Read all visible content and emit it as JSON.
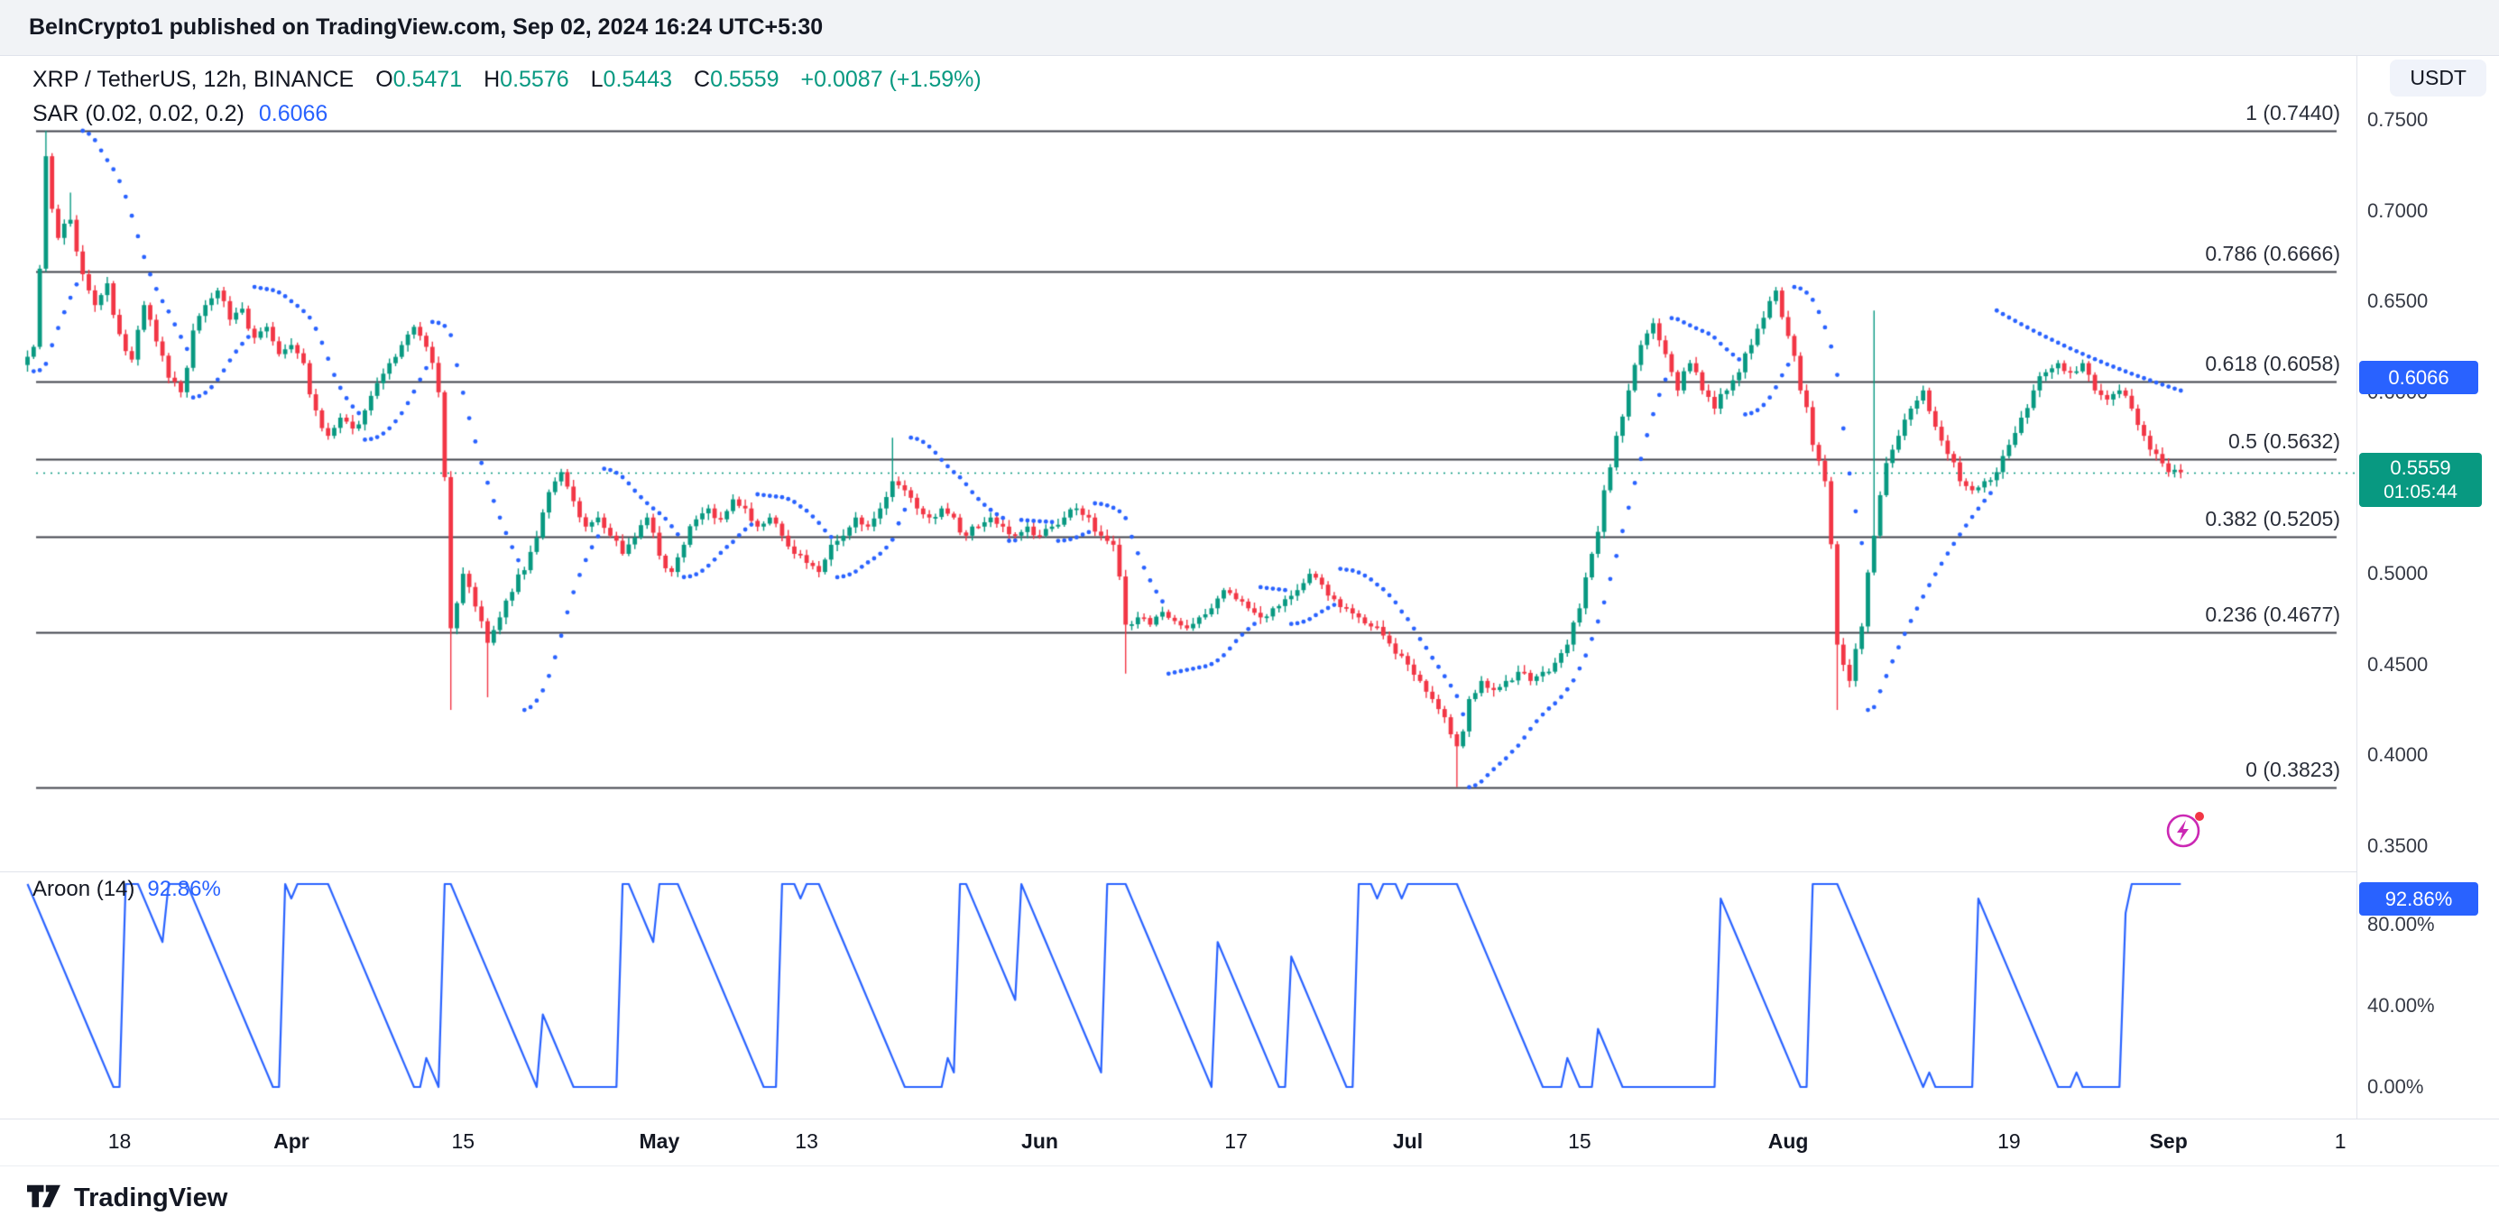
{
  "page": {
    "byline": "BeInCrypto1 published on TradingView.com, Sep 02, 2024 16:24 UTC+5:30",
    "footer_brand": "TradingView"
  },
  "legend": {
    "symbol": "XRP / TetherUS, 12h, BINANCE",
    "o_label": "O",
    "o_value": "0.5471",
    "h_label": "H",
    "h_value": "0.5576",
    "l_label": "L",
    "l_value": "0.5443",
    "c_label": "C",
    "c_value": "0.5559",
    "change": "+0.0087 (+1.59%)"
  },
  "sar_legend": {
    "label": "SAR (0.02, 0.02, 0.2)",
    "value": "0.6066"
  },
  "price_axis": {
    "currency_button": "USDT",
    "ticks": [
      {
        "label": "0.7500",
        "value": 0.75
      },
      {
        "label": "0.7000",
        "value": 0.7
      },
      {
        "label": "0.6500",
        "value": 0.65
      },
      {
        "label": "0.6000",
        "value": 0.6
      },
      {
        "label": "0.5000",
        "value": 0.5
      },
      {
        "label": "0.4500",
        "value": 0.45
      },
      {
        "label": "0.4000",
        "value": 0.4
      },
      {
        "label": "0.3500",
        "value": 0.35
      }
    ],
    "sar_badge": "0.6066",
    "price_badge": {
      "price": "0.5559",
      "countdown": "01:05:44"
    }
  },
  "aroon_pane": {
    "label": "Aroon (14)",
    "value": "92.86%",
    "badge": "92.86%",
    "ticks": [
      {
        "label": "80.00%",
        "value": 80
      },
      {
        "label": "40.00%",
        "value": 40
      },
      {
        "label": "0.00%",
        "value": 0
      }
    ]
  },
  "x_axis": {
    "labels": [
      {
        "label": "18",
        "day": 8,
        "bold": false
      },
      {
        "label": "Apr",
        "day": 22,
        "bold": true
      },
      {
        "label": "15",
        "day": 36,
        "bold": false
      },
      {
        "label": "May",
        "day": 52,
        "bold": true
      },
      {
        "label": "13",
        "day": 64,
        "bold": false
      },
      {
        "label": "Jun",
        "day": 83,
        "bold": true
      },
      {
        "label": "17",
        "day": 99,
        "bold": false
      },
      {
        "label": "Jul",
        "day": 113,
        "bold": true
      },
      {
        "label": "15",
        "day": 127,
        "bold": false
      },
      {
        "label": "Aug",
        "day": 144,
        "bold": true
      },
      {
        "label": "19",
        "day": 162,
        "bold": false
      },
      {
        "label": "Sep",
        "day": 175,
        "bold": true
      },
      {
        "label": "1",
        "day": 189,
        "bold": false
      }
    ]
  },
  "chart_data": {
    "type": "candlestick",
    "symbol": "XRP/USDT",
    "timeframe": "12h",
    "exchange": "BINANCE",
    "price_range": [
      0.35,
      0.76
    ],
    "current_price": 0.5559,
    "fib_levels": [
      {
        "label": "1 (0.7440)",
        "price": 0.744
      },
      {
        "label": "0.786 (0.6666)",
        "price": 0.6666
      },
      {
        "label": "0.618 (0.6058)",
        "price": 0.6058
      },
      {
        "label": "0.5 (0.5632)",
        "price": 0.5632
      },
      {
        "label": "0.382 (0.5205)",
        "price": 0.5205
      },
      {
        "label": "0.236 (0.4677)",
        "price": 0.4677
      },
      {
        "label": "0 (0.3823)",
        "price": 0.3823
      }
    ],
    "sar": {
      "start": 0.02,
      "increment": 0.02,
      "max": 0.2,
      "current": 0.6066
    },
    "aroon": {
      "period": 14,
      "current": 92.86
    },
    "daily_closes": [
      0.615,
      0.625,
      0.73,
      0.685,
      0.695,
      0.665,
      0.648,
      0.66,
      0.632,
      0.618,
      0.648,
      0.628,
      0.608,
      0.6,
      0.634,
      0.648,
      0.656,
      0.64,
      0.646,
      0.63,
      0.636,
      0.621,
      0.626,
      0.616,
      0.59,
      0.576,
      0.586,
      0.58,
      0.59,
      0.605,
      0.616,
      0.626,
      0.636,
      0.625,
      0.6,
      0.47,
      0.5,
      0.482,
      0.462,
      0.476,
      0.49,
      0.502,
      0.52,
      0.545,
      0.556,
      0.54,
      0.526,
      0.531,
      0.521,
      0.511,
      0.52,
      0.531,
      0.51,
      0.501,
      0.516,
      0.53,
      0.536,
      0.53,
      0.541,
      0.536,
      0.526,
      0.531,
      0.521,
      0.511,
      0.506,
      0.501,
      0.516,
      0.521,
      0.531,
      0.526,
      0.536,
      0.551,
      0.546,
      0.536,
      0.531,
      0.536,
      0.531,
      0.521,
      0.526,
      0.531,
      0.526,
      0.521,
      0.526,
      0.521,
      0.526,
      0.531,
      0.536,
      0.531,
      0.521,
      0.516,
      0.472,
      0.476,
      0.472,
      0.479,
      0.474,
      0.47,
      0.476,
      0.481,
      0.491,
      0.486,
      0.481,
      0.476,
      0.481,
      0.486,
      0.491,
      0.5,
      0.494,
      0.486,
      0.481,
      0.476,
      0.471,
      0.466,
      0.456,
      0.45,
      0.441,
      0.431,
      0.421,
      0.405,
      0.431,
      0.441,
      0.436,
      0.441,
      0.446,
      0.441,
      0.446,
      0.451,
      0.461,
      0.481,
      0.511,
      0.546,
      0.576,
      0.601,
      0.626,
      0.638,
      0.621,
      0.601,
      0.616,
      0.601,
      0.591,
      0.601,
      0.611,
      0.626,
      0.641,
      0.656,
      0.631,
      0.601,
      0.571,
      0.551,
      0.461,
      0.441,
      0.471,
      0.521,
      0.561,
      0.576,
      0.591,
      0.601,
      0.581,
      0.566,
      0.551,
      0.546,
      0.551,
      0.556,
      0.571,
      0.586,
      0.601,
      0.611,
      0.616,
      0.611,
      0.616,
      0.601,
      0.596,
      0.601,
      0.591,
      0.576,
      0.566,
      0.556,
      0.5559
    ],
    "wick_events": [
      {
        "day": 2,
        "high": 0.744
      },
      {
        "day": 4,
        "high": 0.71
      },
      {
        "day": 35,
        "low": 0.425
      },
      {
        "day": 38,
        "low": 0.432
      },
      {
        "day": 71,
        "high": 0.575
      },
      {
        "day": 90,
        "low": 0.445
      },
      {
        "day": 117,
        "low": 0.3825
      },
      {
        "day": 148,
        "low": 0.425
      },
      {
        "day": 151,
        "high": 0.645
      }
    ],
    "colors": {
      "up": "#089981",
      "down": "#f23645",
      "sar": "#2962ff",
      "aroon": "#2962ff",
      "fib": "#40444d",
      "price_line": "#089981"
    }
  }
}
